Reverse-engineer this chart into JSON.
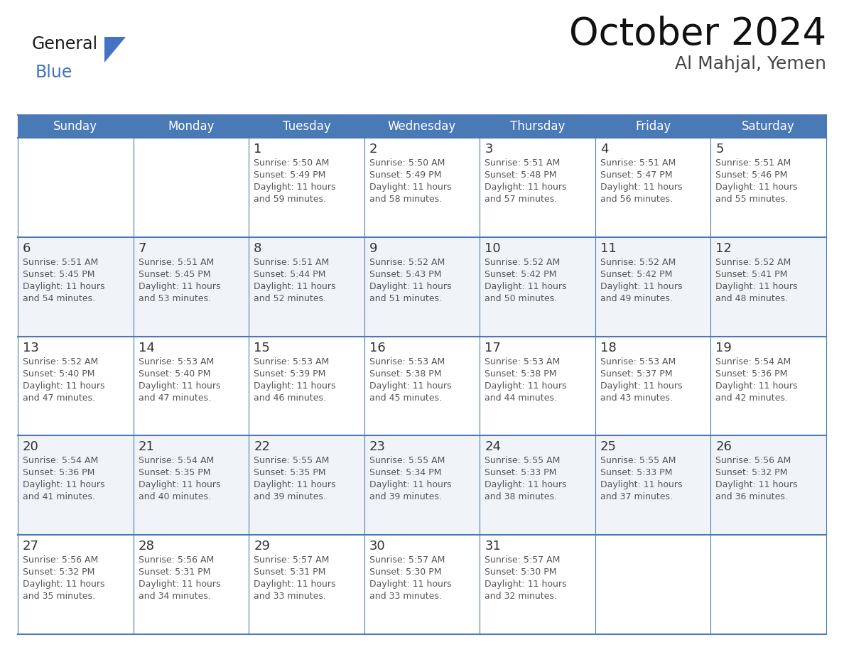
{
  "title": "October 2024",
  "subtitle": "Al Mahjal, Yemen",
  "header_color": "#4a7ab5",
  "header_text_color": "#FFFFFF",
  "cell_bg_even": "#FFFFFF",
  "cell_bg_odd": "#f0f4f9",
  "border_color": "#4a7ab5",
  "text_color": "#555555",
  "day_number_color": "#333333",
  "days_of_week": [
    "Sunday",
    "Monday",
    "Tuesday",
    "Wednesday",
    "Thursday",
    "Friday",
    "Saturday"
  ],
  "weeks": [
    [
      {
        "day": "",
        "sunrise": "",
        "sunset": "",
        "daylight": ""
      },
      {
        "day": "",
        "sunrise": "",
        "sunset": "",
        "daylight": ""
      },
      {
        "day": "1",
        "sunrise": "5:50 AM",
        "sunset": "5:49 PM",
        "daylight": "11 hours and 59 minutes."
      },
      {
        "day": "2",
        "sunrise": "5:50 AM",
        "sunset": "5:49 PM",
        "daylight": "11 hours and 58 minutes."
      },
      {
        "day": "3",
        "sunrise": "5:51 AM",
        "sunset": "5:48 PM",
        "daylight": "11 hours and 57 minutes."
      },
      {
        "day": "4",
        "sunrise": "5:51 AM",
        "sunset": "5:47 PM",
        "daylight": "11 hours and 56 minutes."
      },
      {
        "day": "5",
        "sunrise": "5:51 AM",
        "sunset": "5:46 PM",
        "daylight": "11 hours and 55 minutes."
      }
    ],
    [
      {
        "day": "6",
        "sunrise": "5:51 AM",
        "sunset": "5:45 PM",
        "daylight": "11 hours and 54 minutes."
      },
      {
        "day": "7",
        "sunrise": "5:51 AM",
        "sunset": "5:45 PM",
        "daylight": "11 hours and 53 minutes."
      },
      {
        "day": "8",
        "sunrise": "5:51 AM",
        "sunset": "5:44 PM",
        "daylight": "11 hours and 52 minutes."
      },
      {
        "day": "9",
        "sunrise": "5:52 AM",
        "sunset": "5:43 PM",
        "daylight": "11 hours and 51 minutes."
      },
      {
        "day": "10",
        "sunrise": "5:52 AM",
        "sunset": "5:42 PM",
        "daylight": "11 hours and 50 minutes."
      },
      {
        "day": "11",
        "sunrise": "5:52 AM",
        "sunset": "5:42 PM",
        "daylight": "11 hours and 49 minutes."
      },
      {
        "day": "12",
        "sunrise": "5:52 AM",
        "sunset": "5:41 PM",
        "daylight": "11 hours and 48 minutes."
      }
    ],
    [
      {
        "day": "13",
        "sunrise": "5:52 AM",
        "sunset": "5:40 PM",
        "daylight": "11 hours and 47 minutes."
      },
      {
        "day": "14",
        "sunrise": "5:53 AM",
        "sunset": "5:40 PM",
        "daylight": "11 hours and 47 minutes."
      },
      {
        "day": "15",
        "sunrise": "5:53 AM",
        "sunset": "5:39 PM",
        "daylight": "11 hours and 46 minutes."
      },
      {
        "day": "16",
        "sunrise": "5:53 AM",
        "sunset": "5:38 PM",
        "daylight": "11 hours and 45 minutes."
      },
      {
        "day": "17",
        "sunrise": "5:53 AM",
        "sunset": "5:38 PM",
        "daylight": "11 hours and 44 minutes."
      },
      {
        "day": "18",
        "sunrise": "5:53 AM",
        "sunset": "5:37 PM",
        "daylight": "11 hours and 43 minutes."
      },
      {
        "day": "19",
        "sunrise": "5:54 AM",
        "sunset": "5:36 PM",
        "daylight": "11 hours and 42 minutes."
      }
    ],
    [
      {
        "day": "20",
        "sunrise": "5:54 AM",
        "sunset": "5:36 PM",
        "daylight": "11 hours and 41 minutes."
      },
      {
        "day": "21",
        "sunrise": "5:54 AM",
        "sunset": "5:35 PM",
        "daylight": "11 hours and 40 minutes."
      },
      {
        "day": "22",
        "sunrise": "5:55 AM",
        "sunset": "5:35 PM",
        "daylight": "11 hours and 39 minutes."
      },
      {
        "day": "23",
        "sunrise": "5:55 AM",
        "sunset": "5:34 PM",
        "daylight": "11 hours and 39 minutes."
      },
      {
        "day": "24",
        "sunrise": "5:55 AM",
        "sunset": "5:33 PM",
        "daylight": "11 hours and 38 minutes."
      },
      {
        "day": "25",
        "sunrise": "5:55 AM",
        "sunset": "5:33 PM",
        "daylight": "11 hours and 37 minutes."
      },
      {
        "day": "26",
        "sunrise": "5:56 AM",
        "sunset": "5:32 PM",
        "daylight": "11 hours and 36 minutes."
      }
    ],
    [
      {
        "day": "27",
        "sunrise": "5:56 AM",
        "sunset": "5:32 PM",
        "daylight": "11 hours and 35 minutes."
      },
      {
        "day": "28",
        "sunrise": "5:56 AM",
        "sunset": "5:31 PM",
        "daylight": "11 hours and 34 minutes."
      },
      {
        "day": "29",
        "sunrise": "5:57 AM",
        "sunset": "5:31 PM",
        "daylight": "11 hours and 33 minutes."
      },
      {
        "day": "30",
        "sunrise": "5:57 AM",
        "sunset": "5:30 PM",
        "daylight": "11 hours and 33 minutes."
      },
      {
        "day": "31",
        "sunrise": "5:57 AM",
        "sunset": "5:30 PM",
        "daylight": "11 hours and 32 minutes."
      },
      {
        "day": "",
        "sunrise": "",
        "sunset": "",
        "daylight": ""
      },
      {
        "day": "",
        "sunrise": "",
        "sunset": "",
        "daylight": ""
      }
    ]
  ],
  "logo_color1": "#1a1a1a",
  "logo_color2": "#4472C4",
  "title_fontsize": 38,
  "subtitle_fontsize": 18,
  "header_fontsize": 12,
  "day_num_fontsize": 13,
  "cell_text_fontsize": 9
}
